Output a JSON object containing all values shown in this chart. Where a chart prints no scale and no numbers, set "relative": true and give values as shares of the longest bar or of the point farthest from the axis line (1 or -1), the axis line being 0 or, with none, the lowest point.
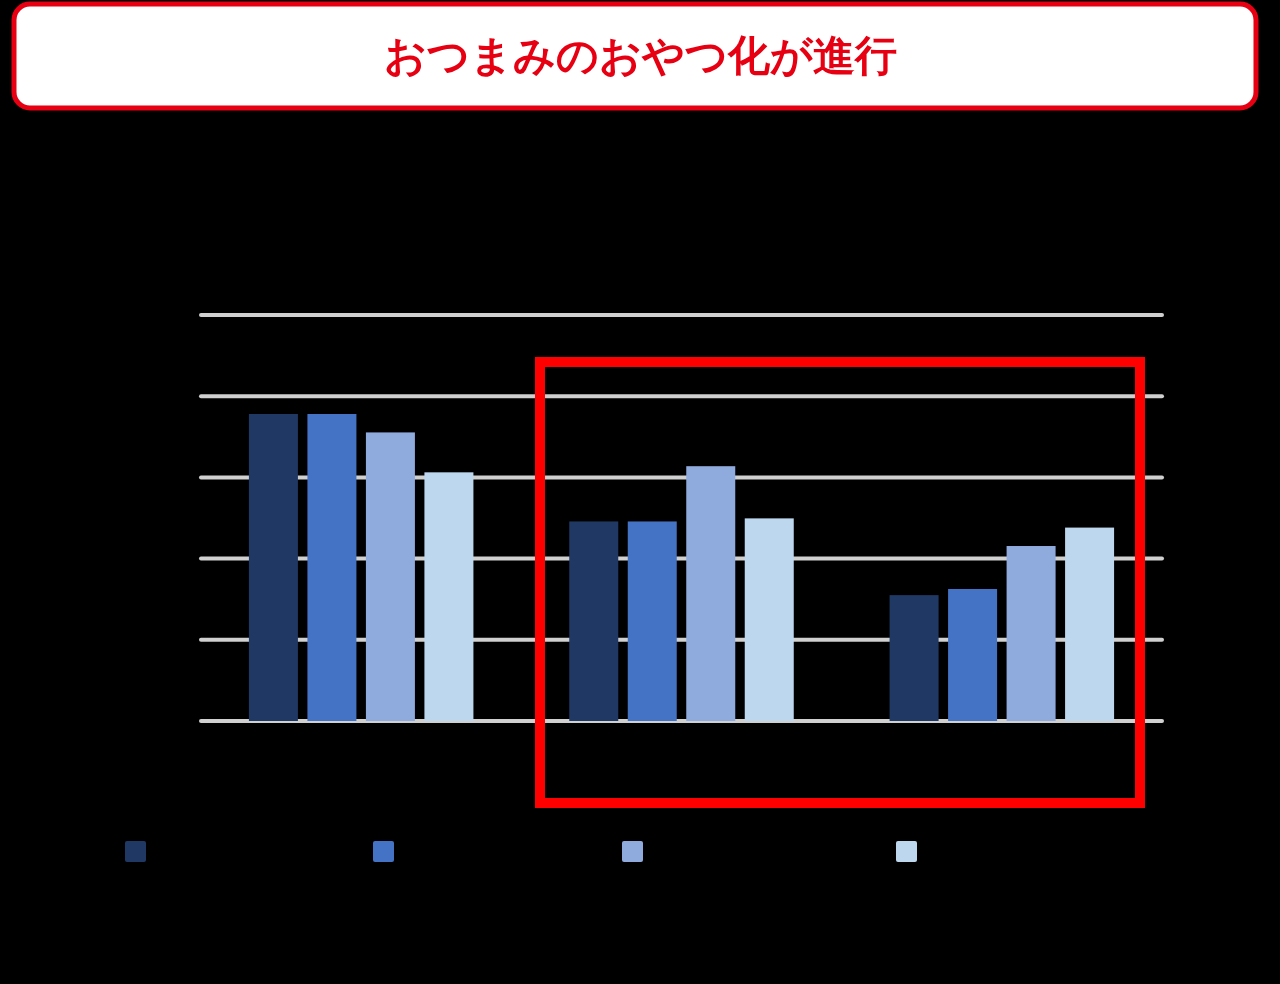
{
  "chart_data": {
    "type": "bar",
    "title": "おつまみのおやつ化が進行",
    "relative": true,
    "grid": true,
    "categories": [
      null,
      null,
      null
    ],
    "series": [
      {
        "color": "#203864",
        "values": [
          1,
          0.65,
          0.41
        ]
      },
      {
        "color": "#4472c4",
        "values": [
          1,
          0.65,
          0.43
        ]
      },
      {
        "color": "#8faadc",
        "values": [
          0.94,
          0.83,
          0.57
        ]
      },
      {
        "color": "#bdd7ee",
        "values": [
          0.81,
          0.66,
          0.63
        ]
      }
    ]
  }
}
